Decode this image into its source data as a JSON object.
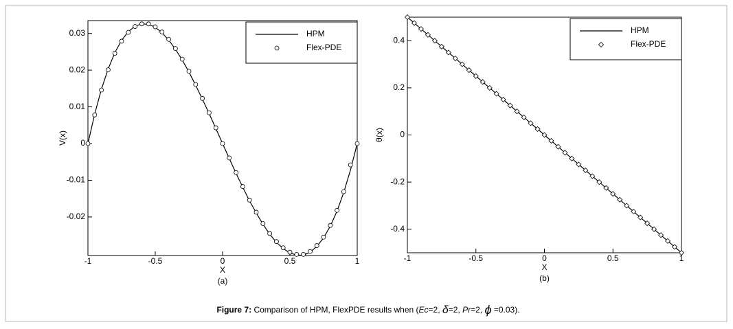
{
  "chart_data": [
    {
      "type": "line",
      "xlabel": "X",
      "ylabel": "V(x)",
      "sublabel": "(a)",
      "x": [
        -1,
        -0.95,
        -0.9,
        -0.85,
        -0.8,
        -0.75,
        -0.7,
        -0.65,
        -0.6,
        -0.55,
        -0.5,
        -0.45,
        -0.4,
        -0.35,
        -0.3,
        -0.25,
        -0.2,
        -0.15,
        -0.1,
        -0.05,
        0,
        0.05,
        0.1,
        0.15,
        0.2,
        0.25,
        0.3,
        0.35,
        0.4,
        0.45,
        0.5,
        0.55,
        0.6,
        0.65,
        0.7,
        0.75,
        0.8,
        0.85,
        0.9,
        0.95,
        1
      ],
      "series": [
        {
          "name": "HPM",
          "color": "#000000",
          "style": "line",
          "values": [
            0,
            0.008,
            0.0148,
            0.0203,
            0.0248,
            0.0281,
            0.0305,
            0.032,
            0.0326,
            0.0325,
            0.0317,
            0.0302,
            0.0282,
            0.0257,
            0.0228,
            0.0195,
            0.0159,
            0.0121,
            0.0082,
            0.0041,
            0,
            -0.0041,
            -0.0081,
            -0.0119,
            -0.0156,
            -0.0189,
            -0.022,
            -0.0247,
            -0.0269,
            -0.0286,
            -0.0298,
            -0.0304,
            -0.0304,
            -0.0296,
            -0.028,
            -0.0257,
            -0.0225,
            -0.0184,
            -0.0133,
            -0.0072,
            0
          ]
        },
        {
          "name": "Flex-PDE",
          "color": "#000000",
          "style": "marker",
          "marker": "circle",
          "values": [
            0,
            0.0078,
            0.0146,
            0.0201,
            0.0246,
            0.0279,
            0.0303,
            0.0319,
            0.0326,
            0.0326,
            0.0318,
            0.0304,
            0.0284,
            0.0259,
            0.023,
            0.0197,
            0.0161,
            0.0123,
            0.0084,
            0.0043,
            0,
            -0.0039,
            -0.0079,
            -0.0117,
            -0.0154,
            -0.0187,
            -0.0218,
            -0.0245,
            -0.0267,
            -0.0284,
            -0.0296,
            -0.0302,
            -0.0302,
            -0.0294,
            -0.0278,
            -0.0255,
            -0.0223,
            -0.0182,
            -0.0131,
            -0.0058,
            0
          ]
        }
      ],
      "xlim": [
        -1,
        1
      ],
      "xticks": [
        -1,
        -0.5,
        0,
        0.5,
        1
      ],
      "ylim": [
        -0.0305,
        0.0335
      ],
      "yticks": [
        0.03,
        0.02,
        0.01,
        0,
        -0.01,
        -0.02
      ],
      "legend": "upper right"
    },
    {
      "type": "line",
      "xlabel": "X",
      "ylabel": "θ(x)",
      "sublabel": "(b)",
      "x": [
        -1,
        -0.95,
        -0.9,
        -0.85,
        -0.8,
        -0.75,
        -0.7,
        -0.65,
        -0.6,
        -0.55,
        -0.5,
        -0.45,
        -0.4,
        -0.35,
        -0.3,
        -0.25,
        -0.2,
        -0.15,
        -0.1,
        -0.05,
        0,
        0.05,
        0.1,
        0.15,
        0.2,
        0.25,
        0.3,
        0.35,
        0.4,
        0.45,
        0.5,
        0.55,
        0.6,
        0.65,
        0.7,
        0.75,
        0.8,
        0.85,
        0.9,
        0.95,
        1
      ],
      "series": [
        {
          "name": "HPM",
          "color": "#000000",
          "style": "line",
          "values": [
            0.5,
            0.475,
            0.45,
            0.425,
            0.4,
            0.375,
            0.35,
            0.325,
            0.3,
            0.275,
            0.25,
            0.225,
            0.2,
            0.175,
            0.15,
            0.125,
            0.1,
            0.075,
            0.05,
            0.025,
            0,
            -0.025,
            -0.05,
            -0.075,
            -0.1,
            -0.125,
            -0.15,
            -0.175,
            -0.2,
            -0.225,
            -0.25,
            -0.275,
            -0.3,
            -0.325,
            -0.35,
            -0.375,
            -0.4,
            -0.425,
            -0.45,
            -0.475,
            -0.5
          ]
        },
        {
          "name": "Flex-PDE",
          "color": "#000000",
          "style": "marker",
          "marker": "diamond",
          "values": [
            0.5,
            0.475,
            0.45,
            0.425,
            0.4,
            0.375,
            0.35,
            0.325,
            0.3,
            0.275,
            0.25,
            0.225,
            0.2,
            0.175,
            0.15,
            0.125,
            0.1,
            0.075,
            0.05,
            0.025,
            0,
            -0.025,
            -0.05,
            -0.075,
            -0.1,
            -0.125,
            -0.15,
            -0.175,
            -0.2,
            -0.225,
            -0.25,
            -0.275,
            -0.3,
            -0.325,
            -0.35,
            -0.375,
            -0.4,
            -0.425,
            -0.45,
            -0.475,
            -0.5
          ]
        }
      ],
      "xlim": [
        -1,
        1
      ],
      "xticks": [
        -1,
        -0.5,
        0,
        0.5,
        1
      ],
      "ylim": [
        -0.5,
        0.5
      ],
      "yticks": [
        0.4,
        0.2,
        0,
        -0.2,
        -0.4
      ],
      "legend": "upper right"
    }
  ],
  "caption": [
    "Figure 7:",
    " Comparison of HPM, FlexPDE results when (",
    "Ec",
    "=2, ",
    "δ",
    "=2, ",
    "Pr",
    "=2, ",
    "ϕ",
    " =0.03)."
  ]
}
